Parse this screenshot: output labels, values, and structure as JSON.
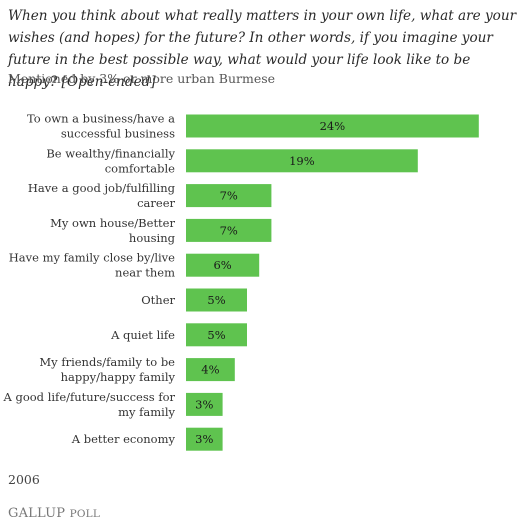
{
  "header": {
    "question": "When you think about what really matters in your own life, what are your wishes (and hopes) for the future? In other words, if you imagine your future in the best possible way, what would your life look like to be happy? [Open-ended]",
    "subtitle": "Mentioned by 3% or more urban Burmese"
  },
  "footer": {
    "year": "2006",
    "logo_main": "GALLUP",
    "logo_small": "POLL"
  },
  "colors": {
    "bar": "#5fc34f",
    "label": "#333333",
    "value_text": "#1a1a1a"
  },
  "chart_data": {
    "type": "bar",
    "orientation": "horizontal",
    "categories": [
      [
        "To own a business/have a",
        "successful business"
      ],
      [
        "Be wealthy/financially",
        "comfortable"
      ],
      [
        "Have a good job/fulfilling",
        "career"
      ],
      [
        "My own house/Better",
        "housing"
      ],
      [
        "Have my family close by/live",
        "near them"
      ],
      [
        "Other"
      ],
      [
        "A quiet life"
      ],
      [
        "My friends/family to be",
        "happy/happy family"
      ],
      [
        "A good life/future/success for",
        "my family"
      ],
      [
        "A better economy"
      ]
    ],
    "values": [
      24,
      19,
      7,
      7,
      6,
      5,
      5,
      4,
      3,
      3
    ],
    "value_labels": [
      "24%",
      "19%",
      "7%",
      "7%",
      "6%",
      "5%",
      "5%",
      "4%",
      "3%",
      "3%"
    ]
  }
}
